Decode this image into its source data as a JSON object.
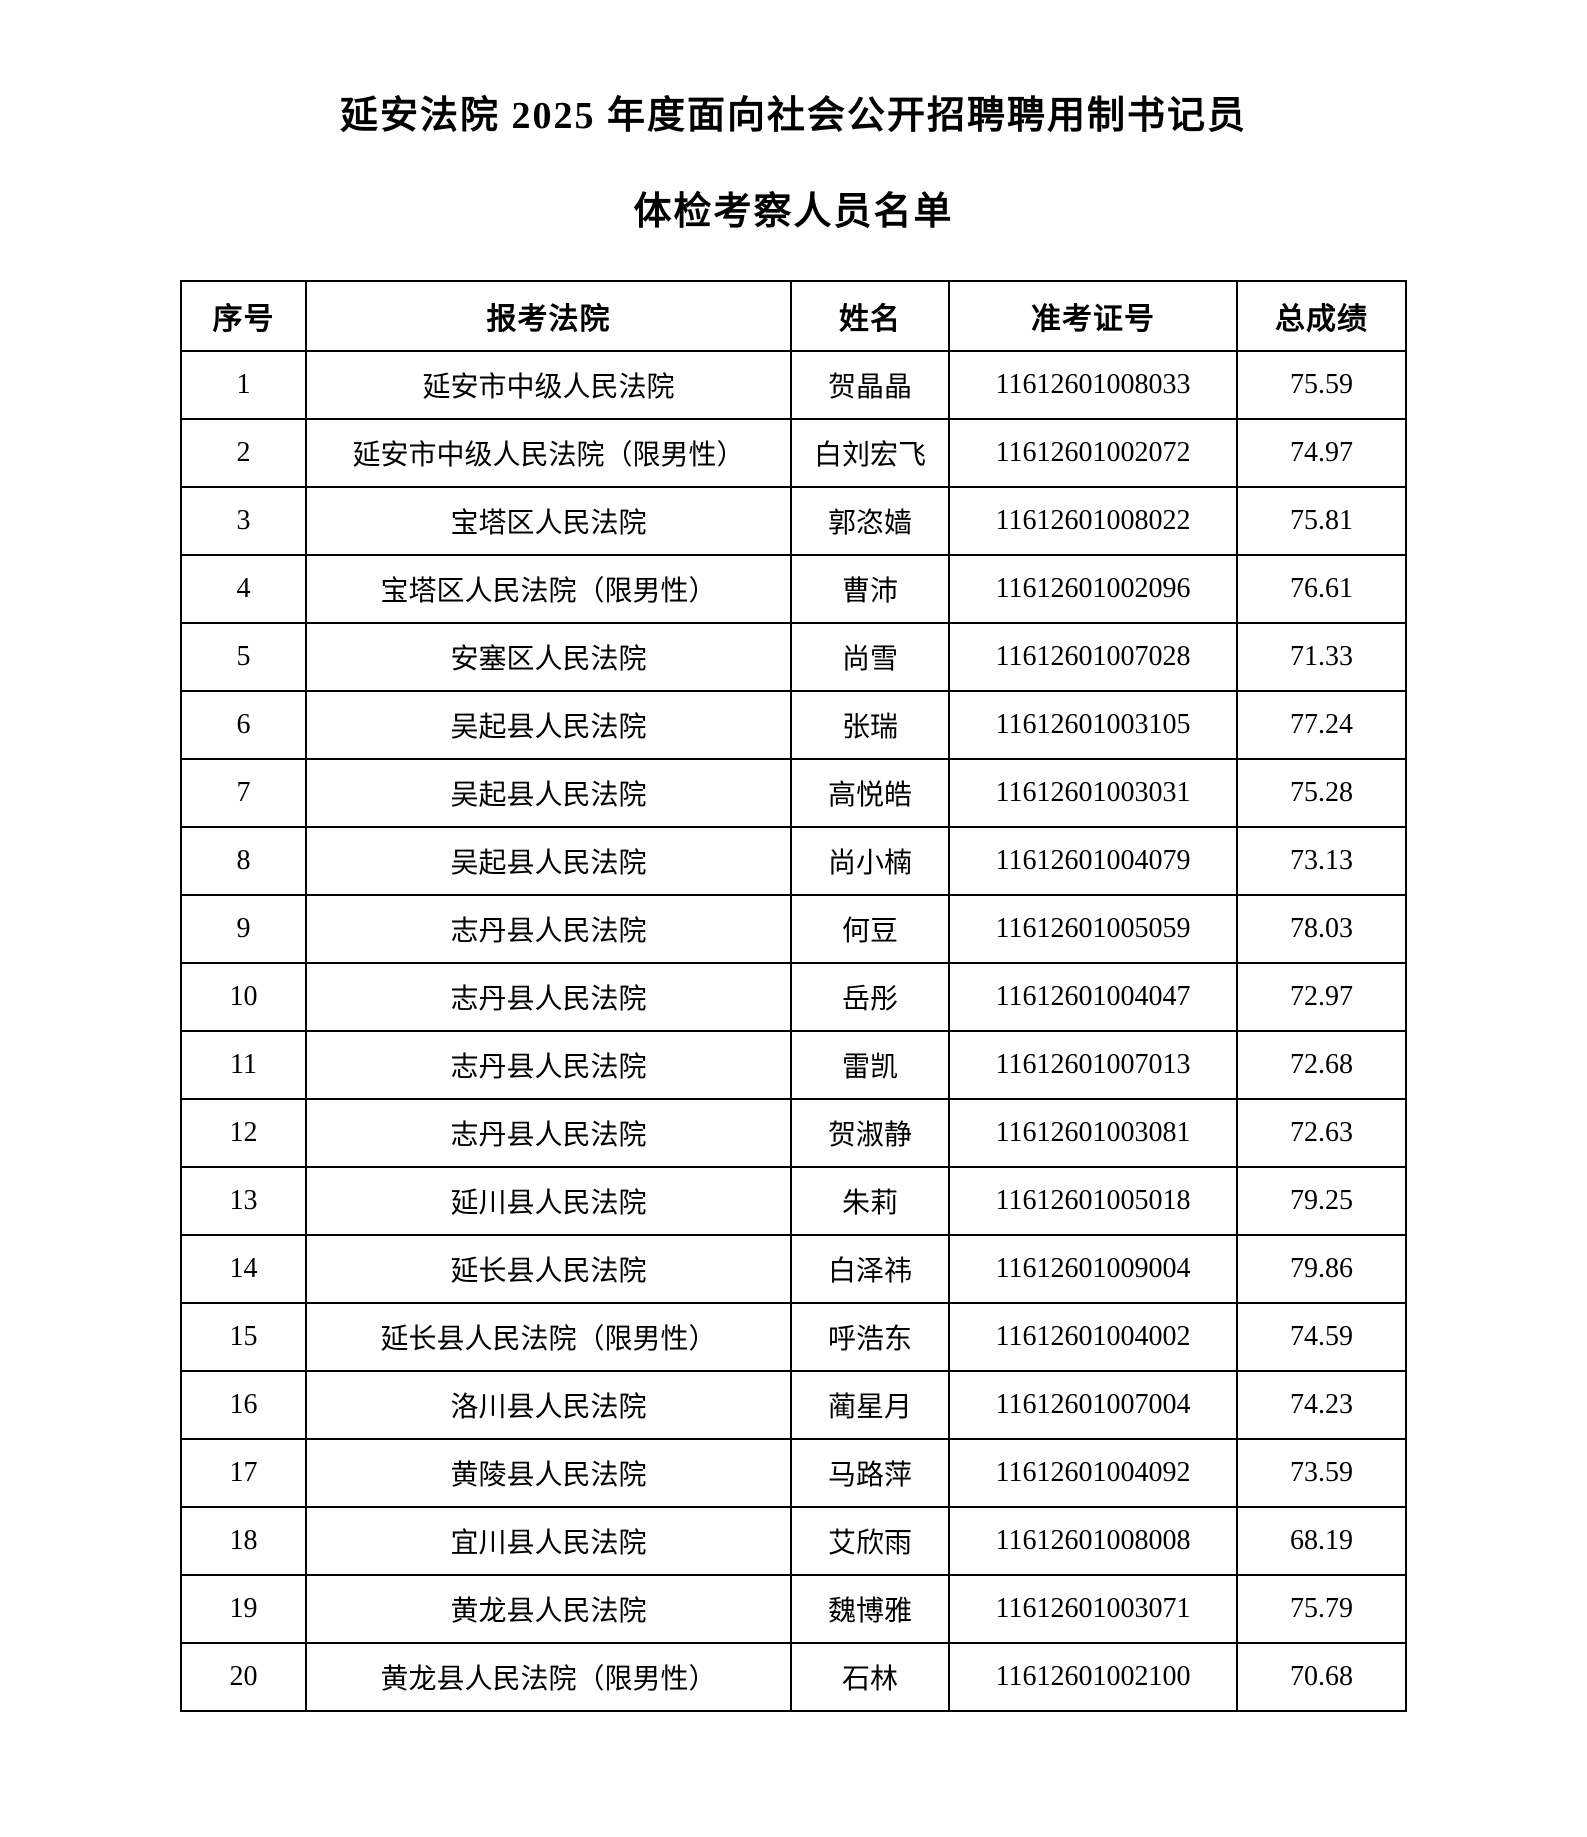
{
  "page": {
    "title_line1": "延安法院 2025 年度面向社会公开招聘聘用制书记员",
    "title_line2": "体检考察人员名单"
  },
  "table": {
    "headers": [
      "序号",
      "报考法院",
      "姓名",
      "准考证号",
      "总成绩"
    ],
    "rows": [
      {
        "no": "1",
        "court": "延安市中级人民法院",
        "name": "贺晶晶",
        "ticket": "11612601008033",
        "score": "75.59"
      },
      {
        "no": "2",
        "court": "延安市中级人民法院（限男性）",
        "name": "白刘宏飞",
        "ticket": "11612601002072",
        "score": "74.97"
      },
      {
        "no": "3",
        "court": "宝塔区人民法院",
        "name": "郭恣嫱",
        "ticket": "11612601008022",
        "score": "75.81"
      },
      {
        "no": "4",
        "court": "宝塔区人民法院（限男性）",
        "name": "曹沛",
        "ticket": "11612601002096",
        "score": "76.61"
      },
      {
        "no": "5",
        "court": "安塞区人民法院",
        "name": "尚雪",
        "ticket": "11612601007028",
        "score": "71.33"
      },
      {
        "no": "6",
        "court": "吴起县人民法院",
        "name": "张瑞",
        "ticket": "11612601003105",
        "score": "77.24"
      },
      {
        "no": "7",
        "court": "吴起县人民法院",
        "name": "高悦皓",
        "ticket": "11612601003031",
        "score": "75.28"
      },
      {
        "no": "8",
        "court": "吴起县人民法院",
        "name": "尚小楠",
        "ticket": "11612601004079",
        "score": "73.13"
      },
      {
        "no": "9",
        "court": "志丹县人民法院",
        "name": "何豆",
        "ticket": "11612601005059",
        "score": "78.03"
      },
      {
        "no": "10",
        "court": "志丹县人民法院",
        "name": "岳彤",
        "ticket": "11612601004047",
        "score": "72.97"
      },
      {
        "no": "11",
        "court": "志丹县人民法院",
        "name": "雷凯",
        "ticket": "11612601007013",
        "score": "72.68"
      },
      {
        "no": "12",
        "court": "志丹县人民法院",
        "name": "贺淑静",
        "ticket": "11612601003081",
        "score": "72.63"
      },
      {
        "no": "13",
        "court": "延川县人民法院",
        "name": "朱莉",
        "ticket": "11612601005018",
        "score": "79.25"
      },
      {
        "no": "14",
        "court": "延长县人民法院",
        "name": "白泽祎",
        "ticket": "11612601009004",
        "score": "79.86"
      },
      {
        "no": "15",
        "court": "延长县人民法院（限男性）",
        "name": "呼浩东",
        "ticket": "11612601004002",
        "score": "74.59"
      },
      {
        "no": "16",
        "court": "洛川县人民法院",
        "name": "蔺星月",
        "ticket": "11612601007004",
        "score": "74.23"
      },
      {
        "no": "17",
        "court": "黄陵县人民法院",
        "name": "马路萍",
        "ticket": "11612601004092",
        "score": "73.59"
      },
      {
        "no": "18",
        "court": "宜川县人民法院",
        "name": "艾欣雨",
        "ticket": "11612601008008",
        "score": "68.19"
      },
      {
        "no": "19",
        "court": "黄龙县人民法院",
        "name": "魏博雅",
        "ticket": "11612601003071",
        "score": "75.79"
      },
      {
        "no": "20",
        "court": "黄龙县人民法院（限男性）",
        "name": "石林",
        "ticket": "11612601002100",
        "score": "70.68"
      }
    ]
  }
}
